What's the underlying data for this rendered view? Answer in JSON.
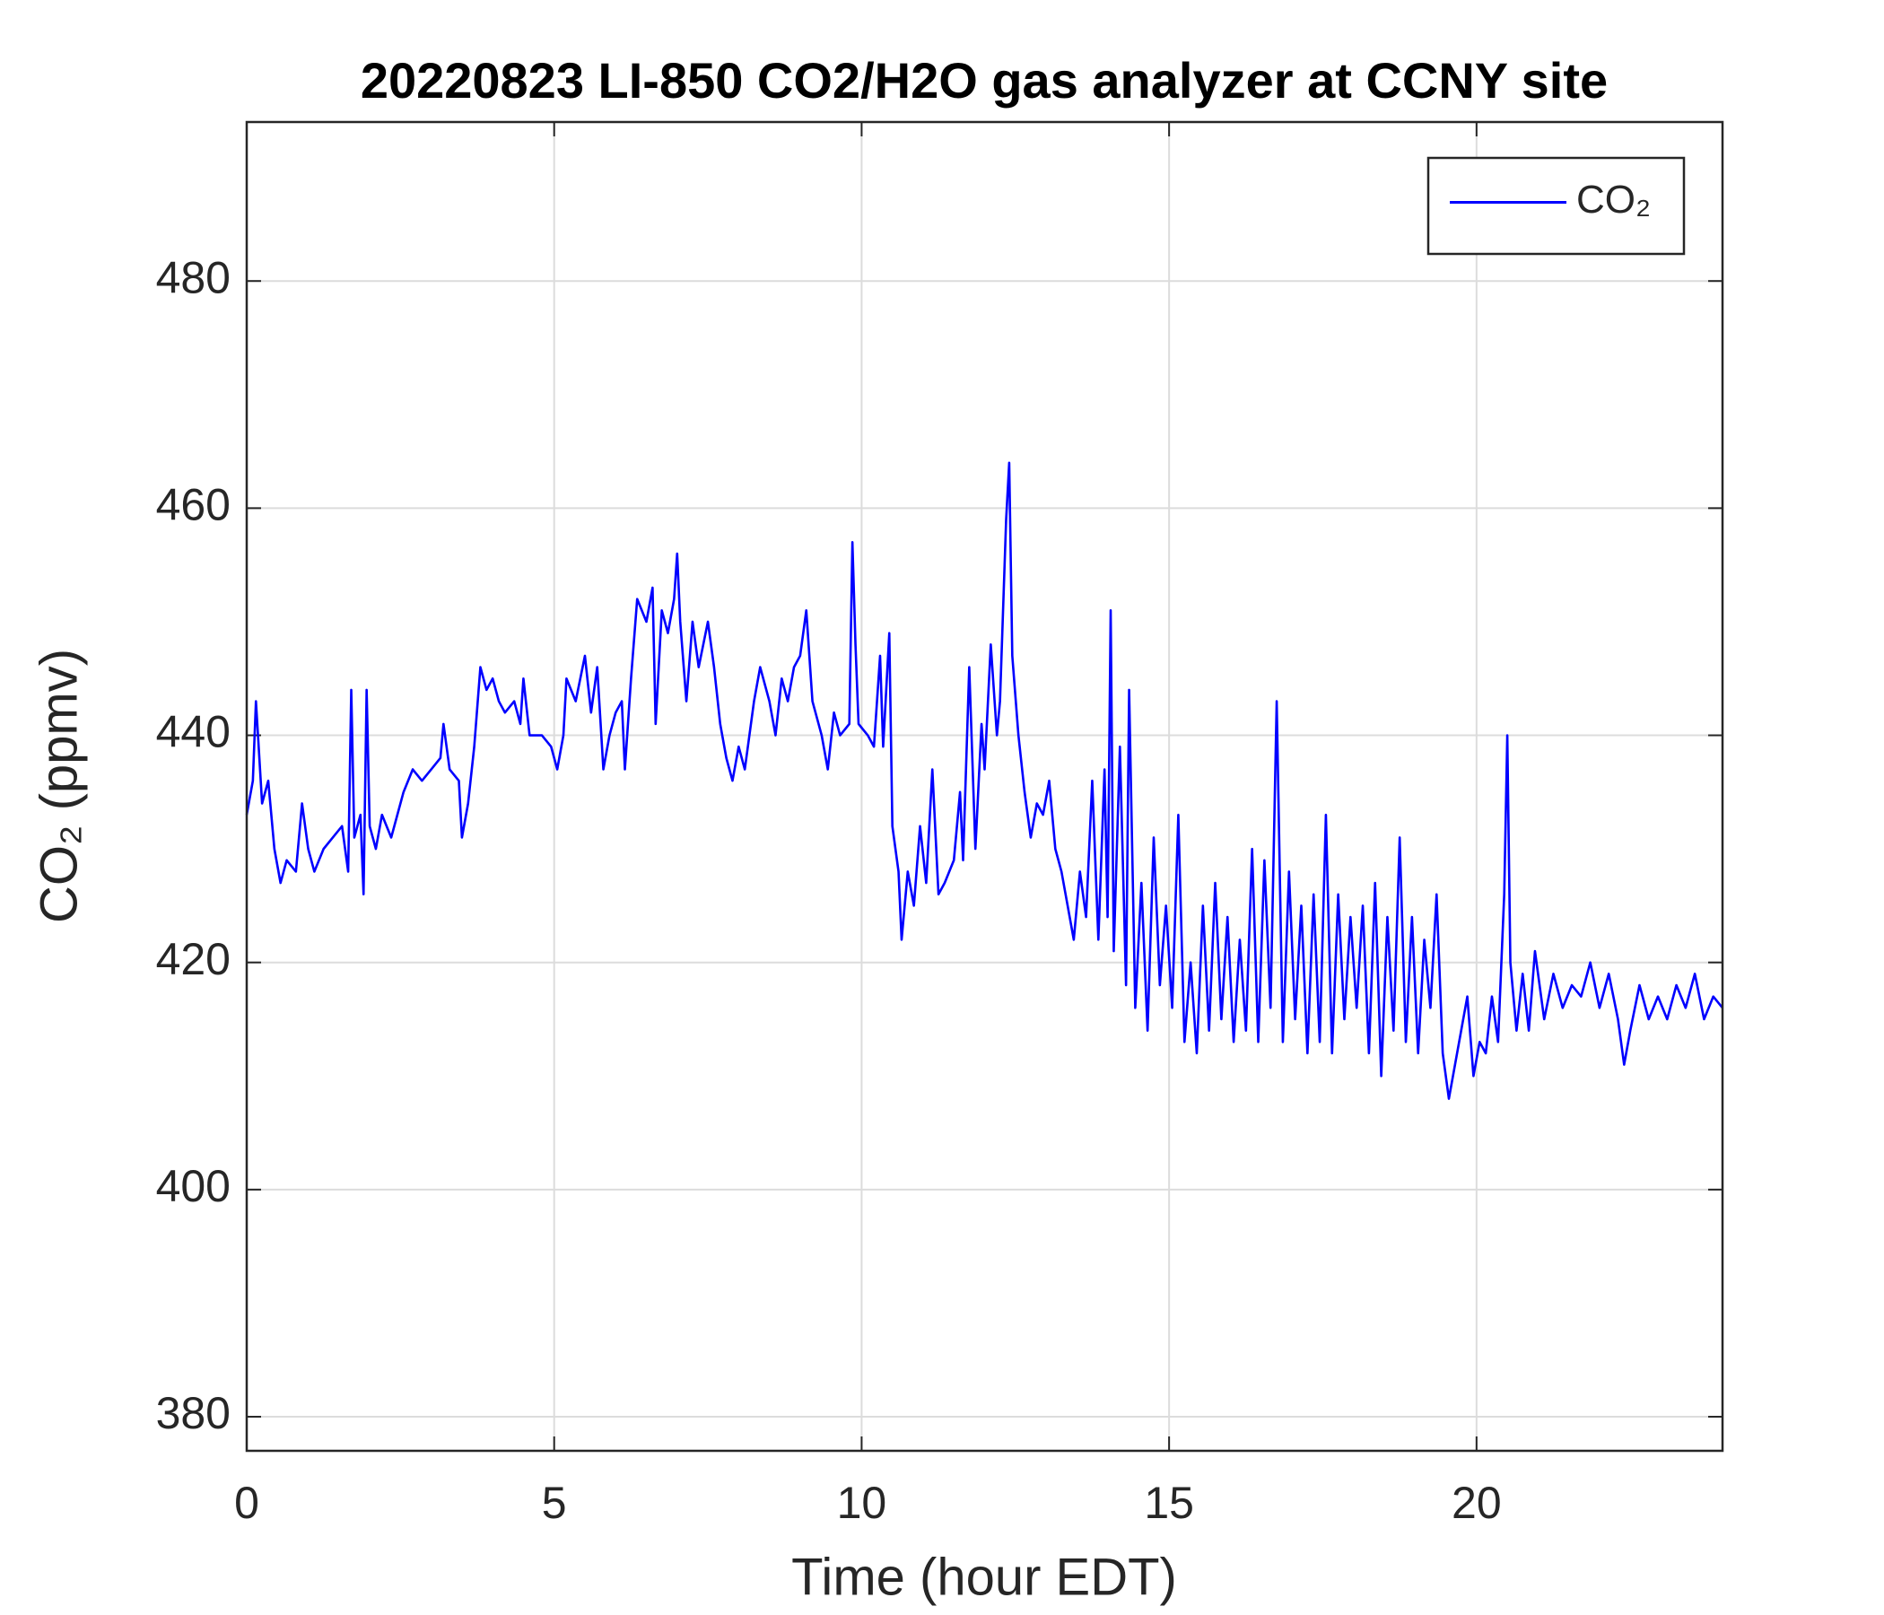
{
  "chart_data": {
    "type": "line",
    "title": "20220823 LI-850 CO2/H2O gas analyzer at CCNY site",
    "xlabel": "Time (hour EDT)",
    "ylabel": "CO₂ (ppmv)",
    "xlim": [
      0,
      24
    ],
    "xticks": [
      0,
      5,
      10,
      15,
      20
    ],
    "ylim": [
      377,
      494
    ],
    "yticks": [
      380,
      400,
      420,
      440,
      460,
      480
    ],
    "grid": true,
    "legend": "upper right",
    "x": [
      0,
      0.1,
      0.15,
      0.25,
      0.35,
      0.45,
      0.55,
      0.65,
      0.8,
      0.9,
      1.0,
      1.1,
      1.25,
      1.4,
      1.55,
      1.65,
      1.7,
      1.75,
      1.85,
      1.9,
      1.95,
      2.0,
      2.1,
      2.2,
      2.35,
      2.45,
      2.55,
      2.7,
      2.85,
      3.0,
      3.15,
      3.2,
      3.3,
      3.45,
      3.5,
      3.6,
      3.7,
      3.8,
      3.9,
      4.0,
      4.1,
      4.2,
      4.35,
      4.45,
      4.5,
      4.6,
      4.8,
      4.95,
      5.05,
      5.15,
      5.2,
      5.35,
      5.5,
      5.6,
      5.7,
      5.8,
      5.9,
      6.0,
      6.1,
      6.15,
      6.25,
      6.35,
      6.5,
      6.6,
      6.65,
      6.75,
      6.85,
      6.95,
      7.0,
      7.05,
      7.15,
      7.25,
      7.35,
      7.5,
      7.6,
      7.7,
      7.8,
      7.9,
      8.0,
      8.1,
      8.25,
      8.35,
      8.5,
      8.6,
      8.7,
      8.8,
      8.9,
      9.0,
      9.1,
      9.2,
      9.35,
      9.45,
      9.55,
      9.65,
      9.8,
      9.85,
      9.9,
      9.95,
      10.1,
      10.2,
      10.3,
      10.35,
      10.45,
      10.5,
      10.6,
      10.65,
      10.75,
      10.85,
      10.95,
      11.05,
      11.15,
      11.25,
      11.35,
      11.5,
      11.6,
      11.65,
      11.75,
      11.85,
      11.95,
      12.0,
      12.1,
      12.2,
      12.25,
      12.35,
      12.4,
      12.45,
      12.55,
      12.65,
      12.75,
      12.85,
      12.95,
      13.05,
      13.15,
      13.25,
      13.35,
      13.45,
      13.55,
      13.65,
      13.75,
      13.85,
      13.95,
      14.0,
      14.05,
      14.1,
      14.2,
      14.3,
      14.35,
      14.45,
      14.55,
      14.65,
      14.75,
      14.85,
      14.95,
      15.05,
      15.15,
      15.25,
      15.35,
      15.45,
      15.55,
      15.65,
      15.75,
      15.85,
      15.95,
      16.05,
      16.15,
      16.25,
      16.35,
      16.45,
      16.55,
      16.65,
      16.75,
      16.85,
      16.95,
      17.05,
      17.15,
      17.25,
      17.35,
      17.45,
      17.55,
      17.65,
      17.75,
      17.85,
      17.95,
      18.05,
      18.15,
      18.25,
      18.35,
      18.45,
      18.55,
      18.65,
      18.75,
      18.85,
      18.95,
      19.05,
      19.15,
      19.25,
      19.35,
      19.45,
      19.55,
      19.65,
      19.75,
      19.85,
      19.95,
      20.05,
      20.15,
      20.25,
      20.35,
      20.45,
      20.5,
      20.55,
      20.65,
      20.75,
      20.85,
      20.95,
      21.1,
      21.25,
      21.4,
      21.55,
      21.7,
      21.85,
      22.0,
      22.15,
      22.3,
      22.4,
      22.5,
      22.65,
      22.8,
      22.95,
      23.1,
      23.25,
      23.4,
      23.55,
      23.7,
      23.85,
      24
    ],
    "series": [
      {
        "name": "CO₂",
        "color": "#0000ff",
        "values": [
          433,
          436,
          443,
          434,
          436,
          430,
          427,
          429,
          428,
          434,
          430,
          428,
          430,
          431,
          432,
          428,
          444,
          431,
          433,
          426,
          444,
          432,
          430,
          433,
          431,
          433,
          435,
          437,
          436,
          437,
          438,
          441,
          437,
          436,
          431,
          434,
          439,
          446,
          444,
          445,
          443,
          442,
          443,
          441,
          445,
          440,
          440,
          439,
          437,
          440,
          445,
          443,
          447,
          442,
          446,
          437,
          440,
          442,
          443,
          437,
          445,
          452,
          450,
          453,
          441,
          451,
          449,
          452,
          456,
          450,
          443,
          450,
          446,
          450,
          446,
          441,
          438,
          436,
          439,
          437,
          443,
          446,
          443,
          440,
          445,
          443,
          446,
          447,
          451,
          443,
          440,
          437,
          442,
          440,
          441,
          457,
          448,
          441,
          440,
          439,
          447,
          439,
          449,
          432,
          428,
          422,
          428,
          425,
          432,
          427,
          437,
          426,
          427,
          429,
          435,
          429,
          446,
          430,
          441,
          437,
          448,
          440,
          443,
          459,
          464,
          447,
          440,
          435,
          431,
          434,
          433,
          436,
          430,
          428,
          425,
          422,
          428,
          424,
          436,
          422,
          437,
          424,
          451,
          421,
          439,
          418,
          444,
          416,
          427,
          414,
          431,
          418,
          425,
          416,
          433,
          413,
          420,
          412,
          425,
          414,
          427,
          415,
          424,
          413,
          422,
          414,
          430,
          413,
          429,
          416,
          443,
          413,
          428,
          415,
          425,
          412,
          426,
          413,
          433,
          412,
          426,
          415,
          424,
          416,
          425,
          412,
          427,
          410,
          424,
          414,
          431,
          413,
          424,
          412,
          422,
          416,
          426,
          412,
          408,
          411,
          414,
          417,
          410,
          413,
          412,
          417,
          413,
          426,
          440,
          420,
          414,
          419,
          414,
          421,
          415,
          419,
          416,
          418,
          417,
          420,
          416,
          419,
          415,
          411,
          414,
          418,
          415,
          417,
          415,
          418,
          416,
          419,
          415,
          417,
          416
        ]
      }
    ]
  }
}
